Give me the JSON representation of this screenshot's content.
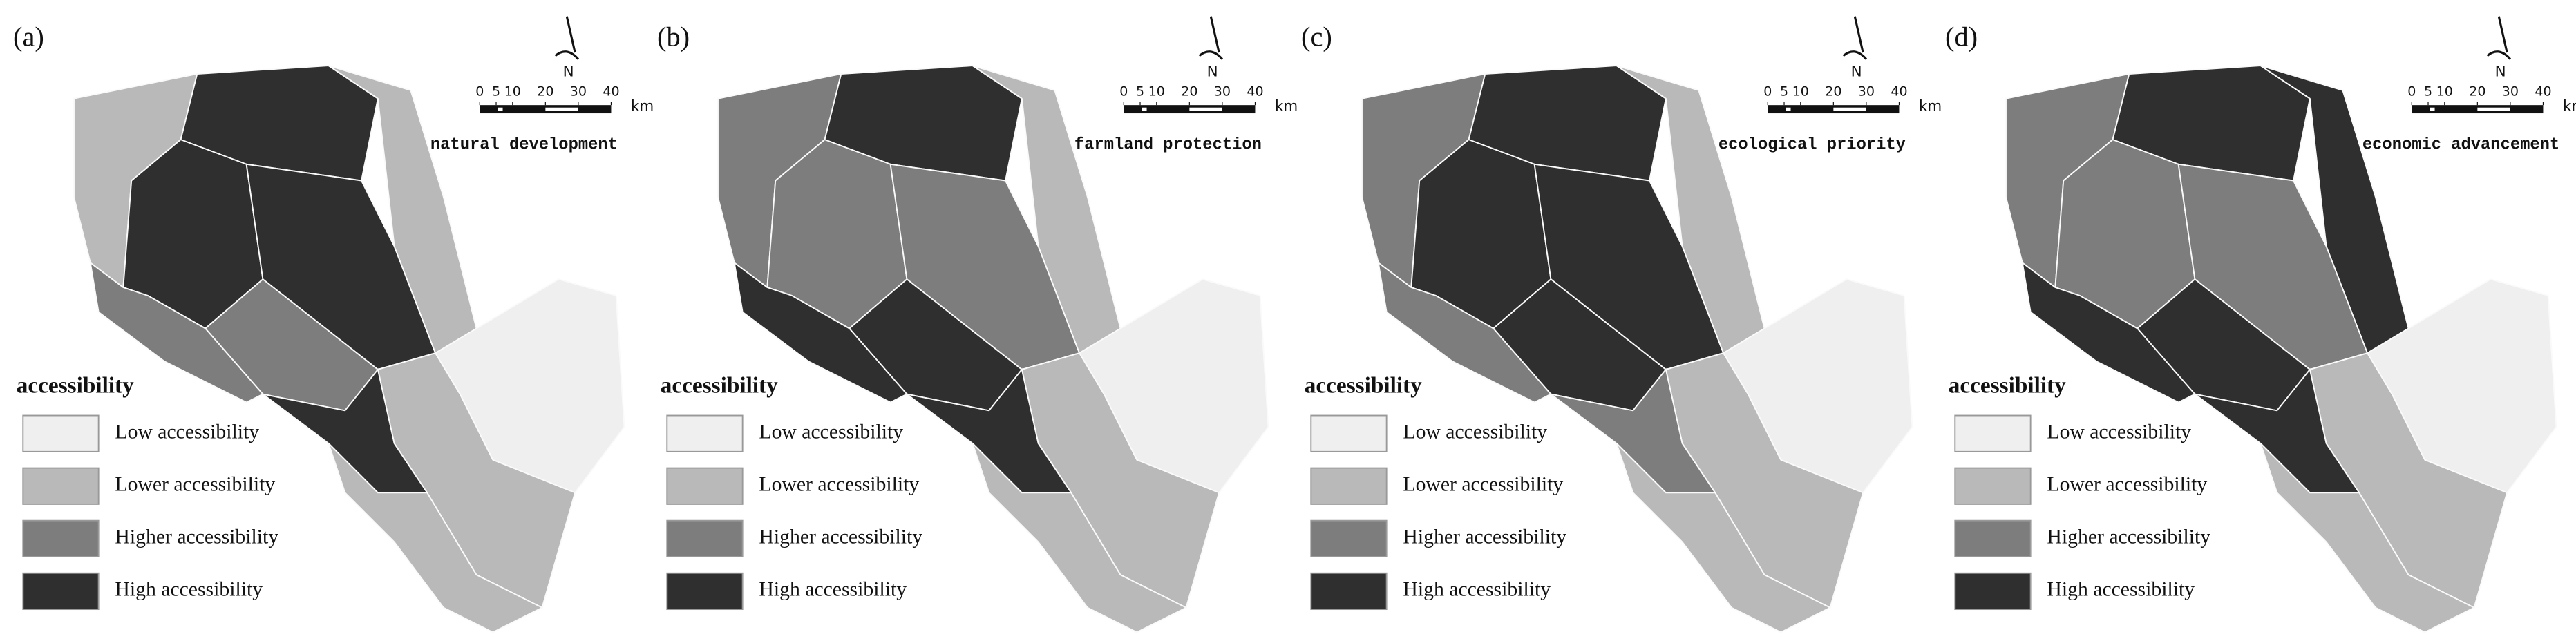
{
  "panels": [
    {
      "label": "(a)",
      "title": "natural development",
      "region_classes": [
        1,
        3,
        1,
        3,
        3,
        2,
        0,
        1,
        3,
        1,
        2
      ]
    },
    {
      "label": "(b)",
      "title": "farmland protection",
      "region_classes": [
        2,
        3,
        1,
        2,
        2,
        3,
        0,
        1,
        3,
        1,
        3
      ]
    },
    {
      "label": "(c)",
      "title": "ecological priority",
      "region_classes": [
        2,
        3,
        1,
        3,
        3,
        3,
        0,
        1,
        2,
        1,
        2
      ]
    },
    {
      "label": "(d)",
      "title": "economic advancement",
      "region_classes": [
        2,
        3,
        3,
        2,
        2,
        3,
        0,
        1,
        3,
        1,
        3
      ]
    }
  ],
  "legend": {
    "title": "accessibility",
    "items": [
      {
        "label": "Low accessibility",
        "color": "#efefef"
      },
      {
        "label": "Lower accessibility",
        "color": "#b9b9b9"
      },
      {
        "label": "Higher accessibility",
        "color": "#7d7d7d"
      },
      {
        "label": "High accessibility",
        "color": "#2f2f2f"
      }
    ]
  },
  "scale": {
    "ticks": [
      0,
      5,
      10,
      20,
      30,
      40
    ],
    "unit": "km"
  },
  "north": "N"
}
